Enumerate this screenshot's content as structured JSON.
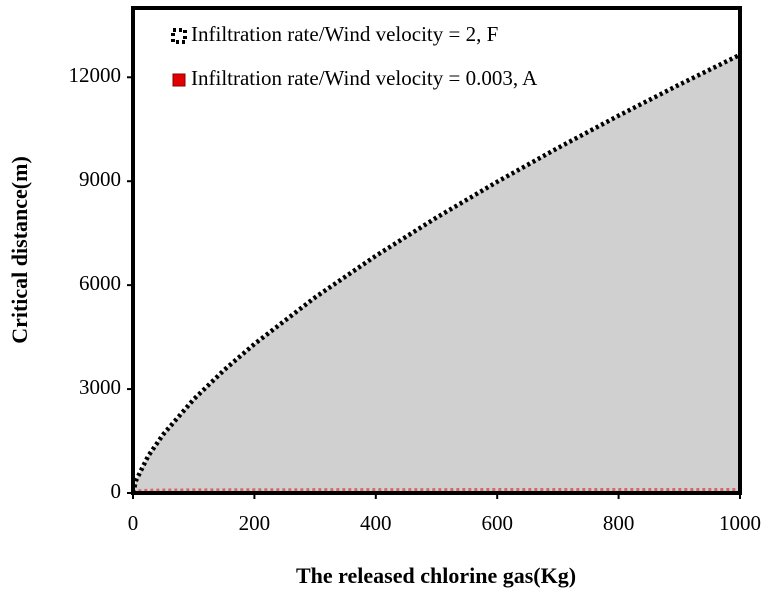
{
  "chart_data": {
    "type": "area",
    "xlabel": "The released chlorine gas(Kg)",
    "ylabel": "Critical distance(m)",
    "x": [
      0,
      5,
      25,
      50,
      100,
      150,
      200,
      300,
      400,
      500,
      600,
      700,
      800,
      900,
      1000
    ],
    "series": [
      {
        "name": "Infiltration rate/Wind velocity = 2, F",
        "color": "#000000",
        "values": [
          0,
          363,
          1068,
          1697,
          2704,
          3548,
          4300,
          5646,
          6846,
          7950,
          8983,
          9960,
          10893,
          11787,
          12650
        ]
      },
      {
        "name": "Infiltration rate/Wind velocity = 0.003, A",
        "color": "#e00000",
        "values": [
          0,
          60,
          80,
          85,
          90,
          92,
          94,
          96,
          98,
          99,
          100,
          100,
          100,
          100,
          100
        ]
      }
    ],
    "xlim": [
      0,
      1000
    ],
    "xticks": [
      0,
      200,
      400,
      600,
      800,
      1000
    ],
    "ylim": [
      0,
      14000
    ],
    "yticks": [
      0,
      3000,
      6000,
      9000,
      12000
    ],
    "legend": "upper left"
  }
}
